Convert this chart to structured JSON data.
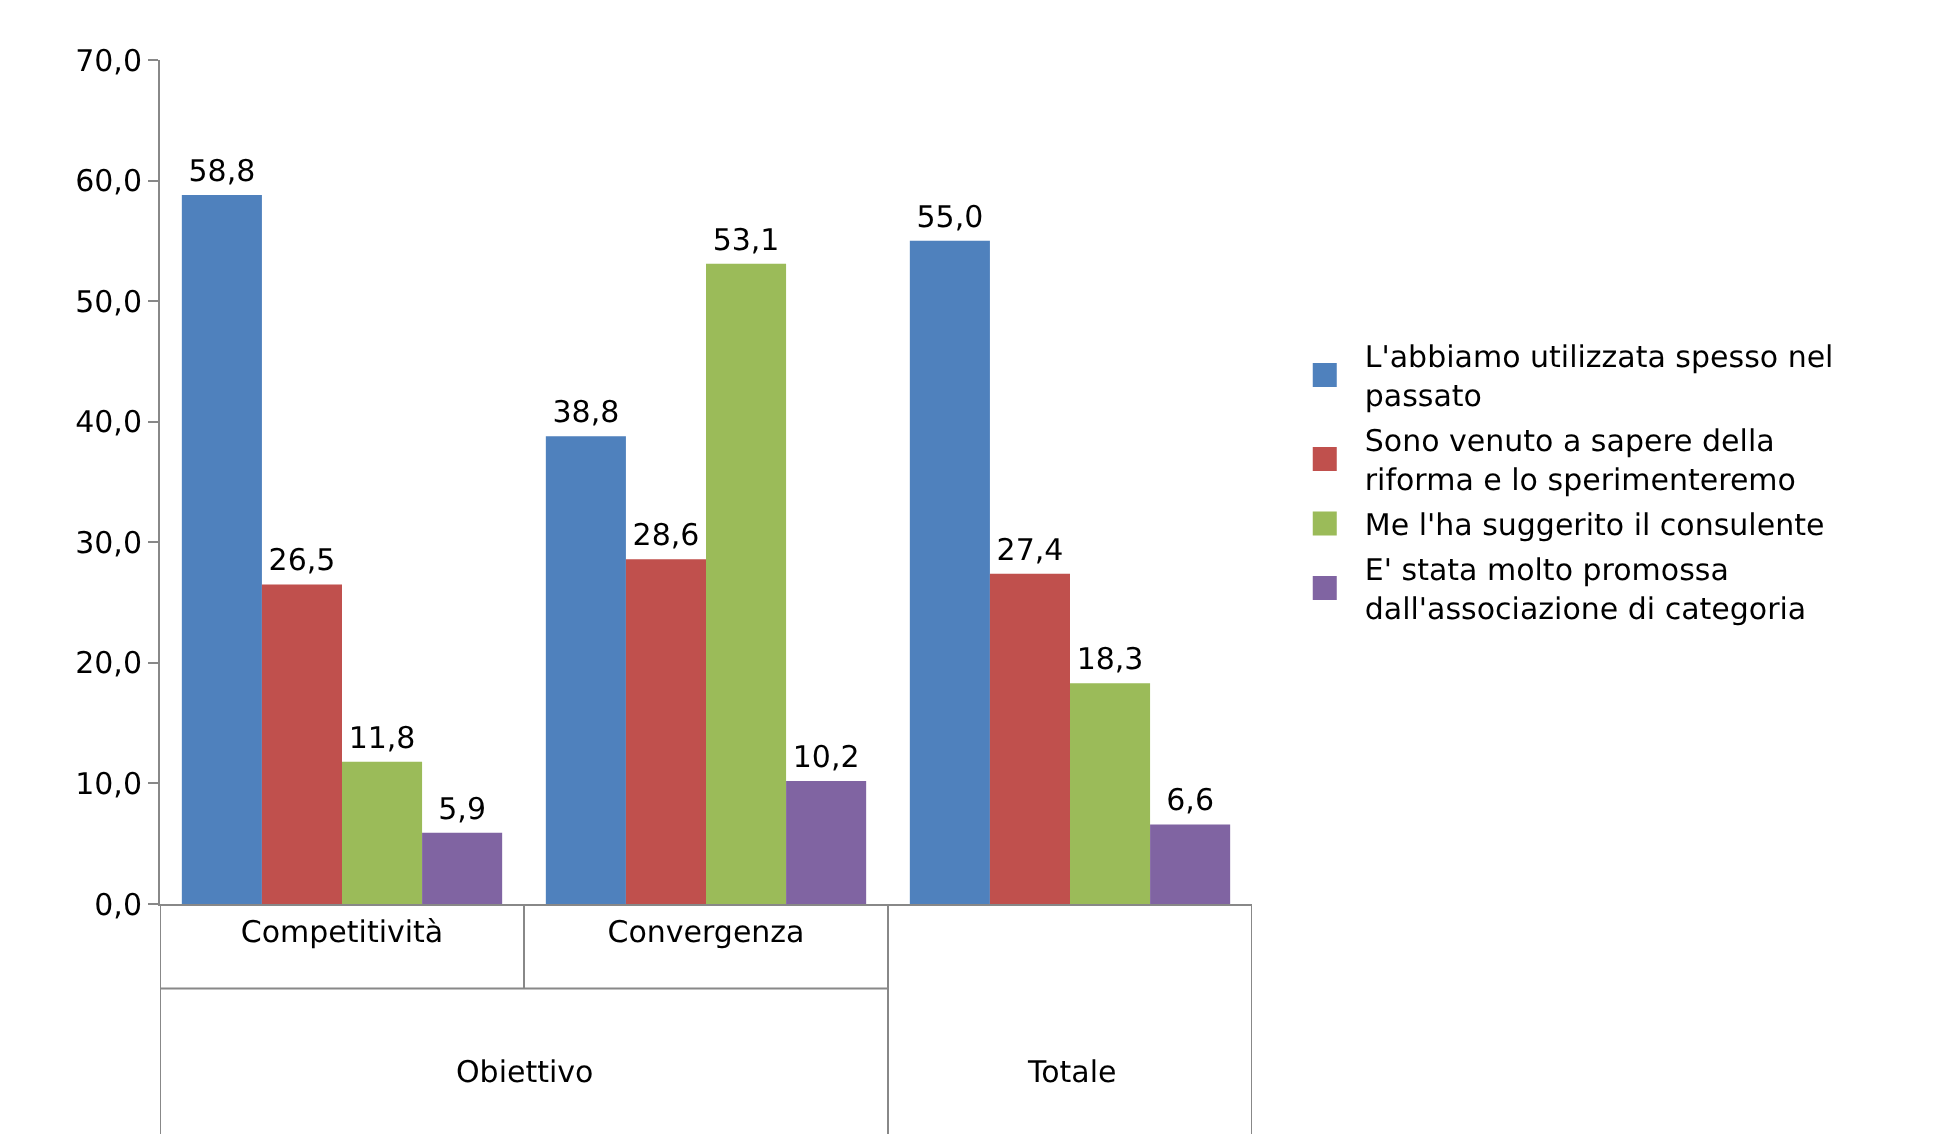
{
  "chart_data": {
    "type": "bar",
    "categories": [
      "Competitività",
      "Convergenza",
      null
    ],
    "annotations": [
      "Obiettivo",
      "Totale"
    ],
    "series": [
      {
        "name": "L'abbiamo utilizzata spesso nel passato",
        "color": "#4f81bd",
        "values": [
          58.8,
          38.8,
          55.0
        ],
        "value_labels": [
          "58,8",
          "38,8",
          "55,0"
        ]
      },
      {
        "name": "Sono venuto a sapere della riforma e lo sperimenteremo",
        "color": "#c0504d",
        "values": [
          26.5,
          28.6,
          27.4
        ],
        "value_labels": [
          "26,5",
          "28,6",
          "27,4"
        ]
      },
      {
        "name": "Me l'ha suggerito il consulente",
        "color": "#9bbb59",
        "values": [
          11.8,
          53.1,
          18.3
        ],
        "value_labels": [
          "11,8",
          "53,1",
          "18,3"
        ]
      },
      {
        "name": "E' stata molto promossa dall'associazione di categoria",
        "color": "#8064a2",
        "values": [
          5.9,
          10.2,
          6.6
        ],
        "value_labels": [
          "5,9",
          "10,2",
          "6,6"
        ]
      }
    ],
    "ylim": [
      0,
      70
    ],
    "yticks": [
      {
        "value": 0,
        "label": "0,0"
      },
      {
        "value": 10,
        "label": "10,0"
      },
      {
        "value": 20,
        "label": "20,0"
      },
      {
        "value": 30,
        "label": "30,0"
      },
      {
        "value": 40,
        "label": "40,0"
      },
      {
        "value": 50,
        "label": "50,0"
      },
      {
        "value": 60,
        "label": "60,0"
      },
      {
        "value": 70,
        "label": "70,0"
      }
    ],
    "grid": false,
    "legend": "right"
  }
}
